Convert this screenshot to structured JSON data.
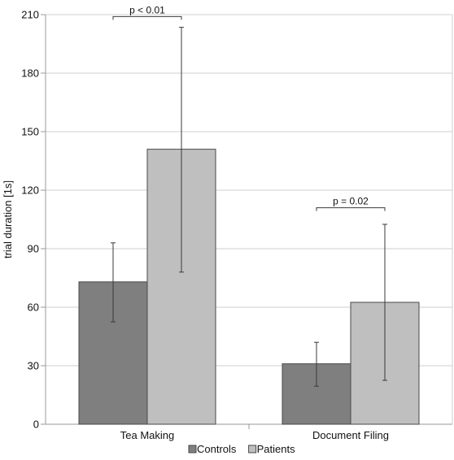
{
  "chart_data": {
    "type": "bar",
    "categories": [
      "Tea Making",
      "Document Filing"
    ],
    "series": [
      {
        "name": "Controls",
        "values": [
          73,
          31
        ],
        "error_low": [
          52.5,
          19.5
        ],
        "error_high": [
          93,
          42
        ],
        "color": "#7f7f7f"
      },
      {
        "name": "Patients",
        "values": [
          141,
          62.5
        ],
        "error_low": [
          78,
          22.5
        ],
        "error_high": [
          203.5,
          102.5
        ],
        "color": "#bfbfbf"
      }
    ],
    "ylabel": "trial duration [1s]",
    "ylim": [
      0,
      210
    ],
    "yticks": [
      0,
      30,
      60,
      90,
      120,
      150,
      180,
      210
    ],
    "grid": true,
    "legend": "bottom",
    "annotations": [
      {
        "text": "p < 0.01",
        "category": "Tea Making",
        "y": 209
      },
      {
        "text": "p = 0.02",
        "category": "Document Filing",
        "y": 111
      }
    ]
  }
}
